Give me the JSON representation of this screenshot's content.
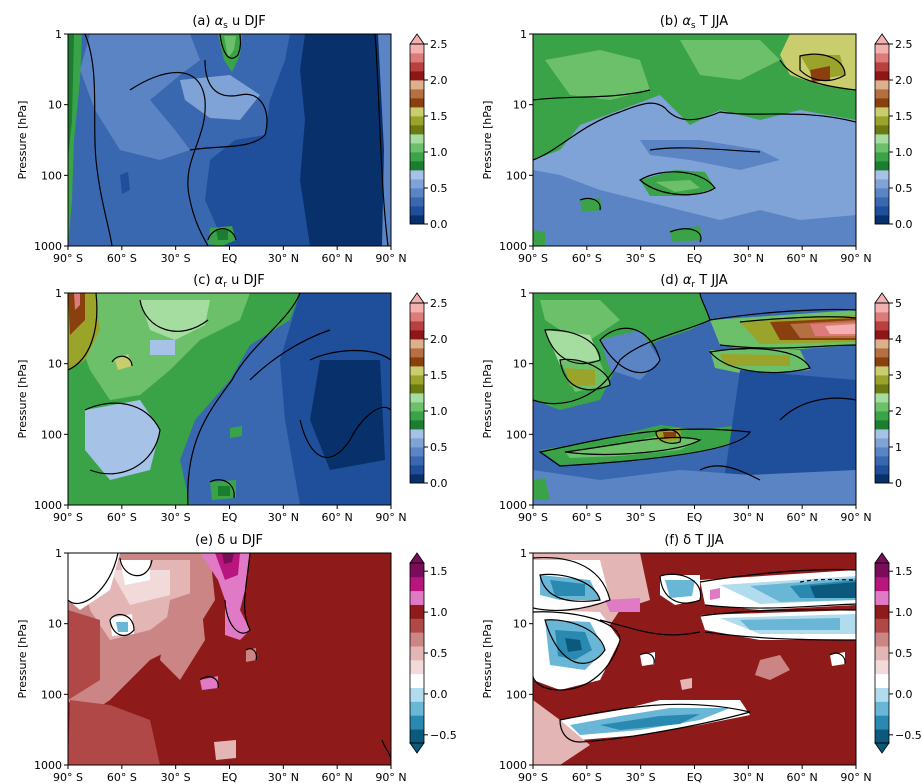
{
  "chart_data": [
    {
      "type": "heatmap",
      "title": "(a) α_s u DJF",
      "title_parts": [
        "(a) ",
        "α",
        "s",
        " u DJF"
      ],
      "ylabel": "Pressure [hPa]",
      "x_ticks": [
        "90° S",
        "60° S",
        "30° S",
        "EQ",
        "30° N",
        "60° N",
        "90° N"
      ],
      "xlim": [
        -90,
        90
      ],
      "y_ticks": [
        "1",
        "10",
        "100",
        "1000"
      ],
      "ylim": [
        1000,
        1
      ],
      "y_scale": "log",
      "colorbar": {
        "ticks": [
          "0.0",
          "0.5",
          "1.0",
          "1.5",
          "2.0",
          "2.5"
        ],
        "range": [
          0,
          2.5
        ],
        "colormap": "blue-green-brown-pink",
        "extend": "max"
      }
    },
    {
      "type": "heatmap",
      "title": "(b) α_s T JJA",
      "title_parts": [
        "(b) ",
        "α",
        "s",
        " T JJA"
      ],
      "ylabel": "Pressure [hPa]",
      "x_ticks": [
        "90° S",
        "60° S",
        "30° S",
        "EQ",
        "30° N",
        "60° N",
        "90° N"
      ],
      "xlim": [
        -90,
        90
      ],
      "y_ticks": [
        "1",
        "10",
        "100",
        "1000"
      ],
      "ylim": [
        1000,
        1
      ],
      "y_scale": "log",
      "colorbar": {
        "ticks": [
          "0.0",
          "0.5",
          "1.0",
          "1.5",
          "2.0",
          "2.5"
        ],
        "range": [
          0,
          2.5
        ],
        "colormap": "blue-green-brown-pink",
        "extend": "max"
      }
    },
    {
      "type": "heatmap",
      "title": "(c) α_r u DJF",
      "title_parts": [
        "(c) ",
        "α",
        "r",
        " u DJF"
      ],
      "ylabel": "Pressure [hPa]",
      "x_ticks": [
        "90° S",
        "60° S",
        "30° S",
        "EQ",
        "30° N",
        "60° N",
        "90° N"
      ],
      "xlim": [
        -90,
        90
      ],
      "y_ticks": [
        "1",
        "10",
        "100",
        "1000"
      ],
      "ylim": [
        1000,
        1
      ],
      "y_scale": "log",
      "colorbar": {
        "ticks": [
          "0.0",
          "0.5",
          "1.0",
          "1.5",
          "2.0",
          "2.5"
        ],
        "range": [
          0,
          2.5
        ],
        "colormap": "blue-green-brown-pink",
        "extend": "max"
      }
    },
    {
      "type": "heatmap",
      "title": "(d) α_r T JJA",
      "title_parts": [
        "(d) ",
        "α",
        "r",
        " T JJA"
      ],
      "ylabel": "Pressure [hPa]",
      "x_ticks": [
        "90° S",
        "60° S",
        "30° S",
        "EQ",
        "30° N",
        "60° N",
        "90° N"
      ],
      "xlim": [
        -90,
        90
      ],
      "y_ticks": [
        "1",
        "10",
        "100",
        "1000"
      ],
      "ylim": [
        1000,
        1
      ],
      "y_scale": "log",
      "colorbar": {
        "ticks": [
          "0",
          "1",
          "2",
          "3",
          "4",
          "5"
        ],
        "range": [
          0,
          5
        ],
        "colormap": "blue-green-brown-pink",
        "extend": "max"
      }
    },
    {
      "type": "heatmap",
      "title": "(e) δ u DJF",
      "title_parts": [
        "(e) δ u DJF"
      ],
      "ylabel": "Pressure [hPa]",
      "x_ticks": [
        "90° S",
        "60° S",
        "30° S",
        "EQ",
        "30° N",
        "60° N",
        "90° N"
      ],
      "xlim": [
        -90,
        90
      ],
      "y_ticks": [
        "1",
        "10",
        "100",
        "1000"
      ],
      "ylim": [
        1000,
        1
      ],
      "y_scale": "log",
      "colorbar": {
        "ticks": [
          "−0.5",
          "0.0",
          "0.5",
          "1.0",
          "1.5"
        ],
        "range": [
          -0.6,
          1.6
        ],
        "colormap": "teal-white-red-magenta",
        "extend": "both"
      }
    },
    {
      "type": "heatmap",
      "title": "(f) δ T JJA",
      "title_parts": [
        "(f) δ T JJA"
      ],
      "ylabel": "Pressure [hPa]",
      "x_ticks": [
        "90° S",
        "60° S",
        "30° S",
        "EQ",
        "30° N",
        "60° N",
        "90° N"
      ],
      "xlim": [
        -90,
        90
      ],
      "y_ticks": [
        "1",
        "10",
        "100",
        "1000"
      ],
      "ylim": [
        1000,
        1
      ],
      "y_scale": "log",
      "colorbar": {
        "ticks": [
          "−0.5",
          "0.0",
          "0.5",
          "1.0",
          "1.5"
        ],
        "range": [
          -0.6,
          1.6
        ],
        "colormap": "teal-white-red-magenta",
        "extend": "both"
      }
    }
  ],
  "colors": {
    "seqA": [
      "#08306b",
      "#1f4e9a",
      "#3a68b0",
      "#5b84c4",
      "#7fa3d6",
      "#a6c2e6",
      "#1a7d2f",
      "#3aa348",
      "#6cc06a",
      "#a5dca0",
      "#6b7a12",
      "#9aa32a",
      "#c9cd6e",
      "#8a3f0e",
      "#b56f40",
      "#dcb08c",
      "#8e1616",
      "#b84040",
      "#dd7a7a",
      "#f3b0b0"
    ],
    "seqB": [
      "#0b5a7d",
      "#2a89b0",
      "#69b6d6",
      "#b1dcee",
      "#ffffff",
      "#f2dada",
      "#e3b5b5",
      "#cc8585",
      "#b04848",
      "#8e1a1a",
      "#e07ac6",
      "#b8167e",
      "#7a0d5a"
    ]
  }
}
